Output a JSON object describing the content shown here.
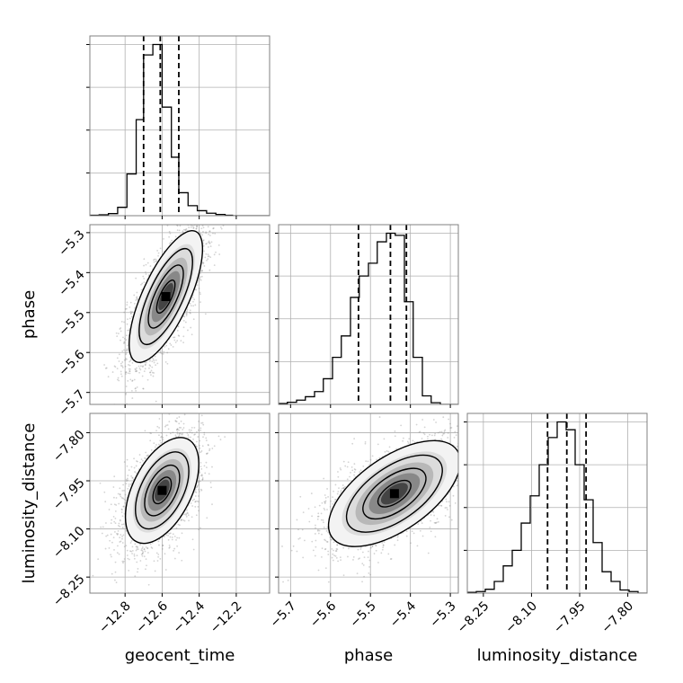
{
  "chart_data": {
    "type": "corner",
    "parameters": [
      "geocent_time",
      "phase",
      "luminosity_distance"
    ],
    "grid": true,
    "ranges": {
      "geocent_time": [
        -12.99,
        -12.02
      ],
      "phase": [
        -5.73,
        -5.28
      ],
      "luminosity_distance": [
        -8.3,
        -7.74
      ]
    },
    "ticks": {
      "geocent_time": [
        -12.8,
        -12.6,
        -12.4,
        -12.2
      ],
      "phase": [
        -5.7,
        -5.6,
        -5.5,
        -5.4,
        -5.3
      ],
      "luminosity_distance": [
        -8.25,
        -8.1,
        -7.95,
        -7.8
      ]
    },
    "tick_labels": {
      "geocent_time": [
        "−12.8",
        "−12.6",
        "−12.4",
        "−12.2"
      ],
      "phase": [
        "−5.7",
        "−5.6",
        "−5.5",
        "−5.4",
        "−5.3"
      ],
      "luminosity_distance": [
        "−8.25",
        "−8.10",
        "−7.95",
        "−7.80"
      ]
    },
    "quantiles": {
      "geocent_time": [
        -12.7,
        -12.61,
        -12.51
      ],
      "phase": [
        -5.53,
        -5.45,
        -5.41
      ],
      "luminosity_distance": [
        -8.05,
        -7.99,
        -7.93
      ]
    },
    "histograms": {
      "geocent_time": {
        "edges": [
          -12.99,
          -12.94,
          -12.89,
          -12.84,
          -12.79,
          -12.74,
          -12.7,
          -12.65,
          -12.6,
          -12.55,
          -12.51,
          -12.46,
          -12.41,
          -12.36,
          -12.31,
          -12.26,
          -12.22,
          -12.17,
          -12.12,
          -12.07,
          -12.02
        ],
        "counts": [
          1,
          2,
          5,
          20,
          100,
          230,
          385,
          410,
          260,
          140,
          55,
          24,
          12,
          6,
          3,
          1,
          0,
          0,
          0,
          0
        ]
      },
      "phase": {
        "edges": [
          -5.73,
          -5.708,
          -5.685,
          -5.663,
          -5.64,
          -5.618,
          -5.595,
          -5.573,
          -5.55,
          -5.528,
          -5.505,
          -5.483,
          -5.46,
          -5.438,
          -5.415,
          -5.393,
          -5.37,
          -5.348,
          -5.325,
          -5.303,
          -5.28
        ],
        "counts": [
          2,
          5,
          10,
          18,
          30,
          60,
          110,
          160,
          250,
          300,
          330,
          380,
          400,
          395,
          240,
          110,
          20,
          4,
          0,
          0
        ]
      },
      "luminosity_distance": {
        "edges": [
          -8.3,
          -8.272,
          -8.244,
          -8.216,
          -8.188,
          -8.16,
          -8.132,
          -8.104,
          -8.076,
          -8.048,
          -8.02,
          -7.992,
          -7.964,
          -7.936,
          -7.908,
          -7.88,
          -7.852,
          -7.824,
          -7.796,
          -7.768,
          -7.74
        ],
        "counts": [
          2,
          4,
          10,
          30,
          70,
          110,
          180,
          250,
          330,
          400,
          440,
          420,
          330,
          240,
          130,
          55,
          30,
          8,
          4,
          0
        ]
      }
    },
    "pairs": [
      {
        "x": "geocent_time",
        "y": "phase",
        "mean": [
          -12.58,
          -5.46
        ],
        "spread": [
          0.09,
          0.075
        ],
        "correlation": 0.72
      },
      {
        "x": "geocent_time",
        "y": "luminosity_distance",
        "mean": [
          -12.6,
          -7.98
        ],
        "spread": [
          0.09,
          0.075
        ],
        "correlation": 0.5
      },
      {
        "x": "phase",
        "y": "luminosity_distance",
        "mean": [
          -5.44,
          -7.99
        ],
        "spread": [
          0.075,
          0.075
        ],
        "correlation": 0.6
      }
    ],
    "colors": {
      "line": "#000000",
      "grid": "#b0b0b0",
      "points": "#808080"
    }
  }
}
